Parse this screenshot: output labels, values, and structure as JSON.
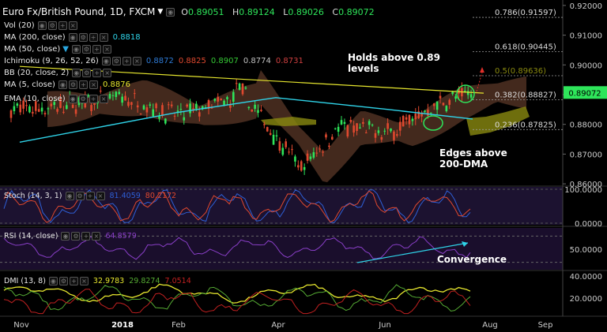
{
  "header": {
    "symbol_title": "Euro Fx/British Pound, 1D, FXCM",
    "ohlc": [
      {
        "key": "O",
        "value": "0.89051"
      },
      {
        "key": "H",
        "value": "0.89124"
      },
      {
        "key": "L",
        "value": "0.89026"
      },
      {
        "key": "C",
        "value": "0.89072"
      }
    ]
  },
  "indicators": [
    {
      "label": "Vol (20)",
      "value": "",
      "color": "#dddddd"
    },
    {
      "label": "MA (200, close)",
      "value": "0.8818",
      "color": "#2fd3e8"
    },
    {
      "label": "MA (50, close)",
      "value": "",
      "color": "#dddddd"
    },
    {
      "label": "Ichimoku (9, 26, 52, 26)",
      "values": [
        "0.8872",
        "0.8825",
        "0.8907",
        "0.8774",
        "0.8731"
      ],
      "colors": [
        "#2e7bd6",
        "#e0492f",
        "#35c935",
        "#c0c0c0",
        "#d04040"
      ]
    },
    {
      "label": "BB (20, close, 2)",
      "value": "",
      "color": "#dddddd"
    },
    {
      "label": "MA (5, close)",
      "value": "0.8876",
      "color": "#e6e62e"
    },
    {
      "label": "EMA (10, close)",
      "value": "",
      "color": "#dddddd"
    }
  ],
  "annotations": {
    "holds": "Holds above 0.89 levels",
    "edges": "Edges above 200-DMA",
    "convergence": "Convergence"
  },
  "colors": {
    "bull": "#2ee55a",
    "bear": "#e0492f",
    "ma200": "#2fd3e8",
    "trend": "#e6e62e",
    "fib": "#9a9a9a",
    "stoch_k": "#2e5fd6",
    "stoch_d": "#e0492f",
    "rsi": "#8a3fc8",
    "dmi_adx": "#e6e62e",
    "dmi_pos": "#55aa33",
    "dmi_neg": "#c02020",
    "price_tag": "#2ee55a"
  },
  "chart_data": [
    {
      "type": "candlestick",
      "title": "Euro Fx/British Pound, 1D, FXCM",
      "x_tick_labels": [
        "Nov",
        "2018",
        "Feb",
        "Apr",
        "Jun",
        "Aug",
        "Sep"
      ],
      "y_tick_labels": [
        "0.92000",
        "0.91000",
        "0.90000",
        "0.89000",
        "0.88000",
        "0.87000",
        "0.86000"
      ],
      "ylim": [
        0.8595,
        0.9205
      ],
      "last_price": "0.89072",
      "price_path": [
        [
          "Nov",
          0.885
        ],
        [
          "Dec",
          0.886
        ],
        [
          "2018",
          0.889
        ],
        [
          "Feb",
          0.883
        ],
        [
          "Mar",
          0.888
        ],
        [
          "Mar (mid)",
          0.894
        ],
        [
          "Apr",
          0.876
        ],
        [
          "Apr (mid)",
          0.865
        ],
        [
          "May",
          0.879
        ],
        [
          "Jun",
          0.877
        ],
        [
          "Jul",
          0.887
        ],
        [
          "Jul (end)",
          0.8907
        ]
      ],
      "series": [
        {
          "name": "MA (200, close)",
          "points": [
            [
              "Nov",
              0.874
            ],
            [
              "Feb",
              0.884
            ],
            [
              "Apr",
              0.889
            ],
            [
              "Jun",
              0.885
            ],
            [
              "Jul (end)",
              0.8818
            ]
          ]
        },
        {
          "points": [
            [
              "Nov",
              0.8995
            ],
            [
              "Jul (end)",
              0.8905
            ]
          ]
        }
      ],
      "fibonacci_levels": [
        {
          "label": "0.786(0.91597)",
          "value": 0.91597
        },
        {
          "label": "0.618(0.90445)",
          "value": 0.90445
        },
        {
          "label": "0.5(0.89636)",
          "value": 0.89636
        },
        {
          "label": "0.382(0.88827)",
          "value": 0.88827
        },
        {
          "label": "0.236(0.87825)",
          "value": 0.87825
        }
      ]
    },
    {
      "type": "line",
      "name": "Stoch (14, 3, 1)",
      "values_text": [
        "81.4059",
        "80.2172"
      ],
      "y_tick_labels": [
        "100.0000",
        "0.0000"
      ],
      "ylim": [
        0,
        100
      ]
    },
    {
      "type": "line",
      "name": "RSI (14, close)",
      "values_text": [
        "64.8579"
      ],
      "y_tick_labels": [
        "50.0000"
      ],
      "ylim": [
        20,
        80
      ]
    },
    {
      "type": "line",
      "name": "DMI (13, 8)",
      "values_text": [
        "32.9783",
        "29.8274",
        "7.0514"
      ],
      "y_tick_labels": [
        "40.0000",
        "20.0000"
      ],
      "ylim": [
        5,
        42
      ]
    }
  ]
}
